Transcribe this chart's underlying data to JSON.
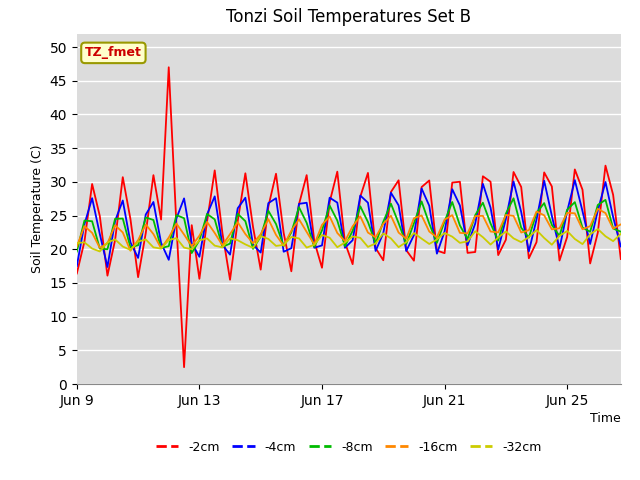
{
  "title": "Tonzi Soil Temperatures Set B",
  "xlabel": "Time",
  "ylabel": "Soil Temperature (C)",
  "ylim": [
    0,
    52
  ],
  "yticks": [
    0,
    5,
    10,
    15,
    20,
    25,
    30,
    35,
    40,
    45,
    50
  ],
  "bg_color": "#dcdcdc",
  "annotation_text": "TZ_fmet",
  "annotation_color": "#cc0000",
  "annotation_bg": "#ffffcc",
  "legend_labels": [
    "-2cm",
    "-4cm",
    "-8cm",
    "-16cm",
    "-32cm"
  ],
  "line_colors": [
    "#ff0000",
    "#0000ff",
    "#00bb00",
    "#ff8800",
    "#cccc00"
  ],
  "x_tick_labels": [
    "Jun 9",
    "Jun 13",
    "Jun 17",
    "Jun 21",
    "Jun 25"
  ],
  "total_days": 18
}
